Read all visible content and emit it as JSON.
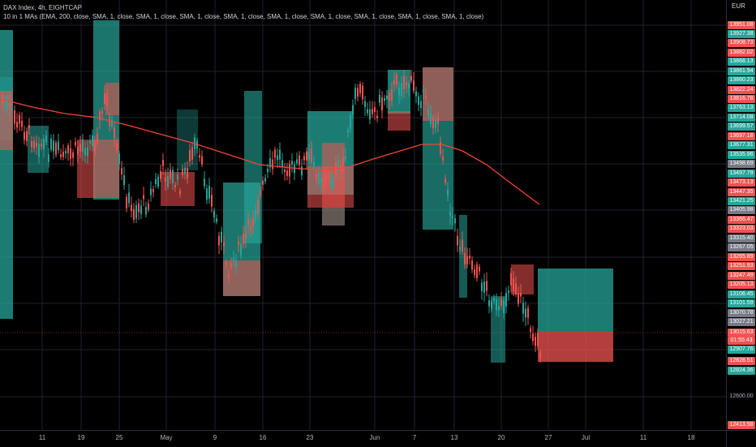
{
  "legend": {
    "symbol_line": "DAX Index, 4h, EIGHTCAP",
    "indicator_line": "10 in 1 MAs (EMA, 200, close, SMA, 1, close, SMA, 1, close, SMA, 1, close, SMA, 1, close, SMA, 1, close, SMA, 1, close, SMA, 1, close, SMA, 1, close, SMA, 1, close)"
  },
  "price_axis": {
    "currency": "EUR",
    "labels": [
      {
        "text": "13951.08",
        "color": "#ef5350"
      },
      {
        "text": "13927.38",
        "color": "#26a69a"
      },
      {
        "text": "13908.73",
        "color": "#ef5350"
      },
      {
        "text": "13882.02",
        "color": "#ef5350"
      },
      {
        "text": "13868.13",
        "color": "#26a69a"
      },
      {
        "text": "13861.94",
        "color": "#26a69a"
      },
      {
        "text": "13860.23",
        "color": "#26a69a"
      },
      {
        "text": "13822.24",
        "color": "#ef5350"
      },
      {
        "text": "13816.78",
        "color": "#ef5350"
      },
      {
        "text": "13763.13",
        "color": "#26a69a"
      },
      {
        "text": "13714.08",
        "color": "#26a69a"
      },
      {
        "text": "13699.57",
        "color": "#26a69a"
      },
      {
        "text": "13697.18",
        "color": "#ef5350"
      },
      {
        "text": "13677.31",
        "color": "#26a69a"
      },
      {
        "text": "13535.96",
        "color": "#26a69a"
      },
      {
        "text": "13498.69",
        "color": "#787b86"
      },
      {
        "text": "13497.79",
        "color": "#26a69a"
      },
      {
        "text": "13473.13",
        "color": "#ef5350"
      },
      {
        "text": "13447.35",
        "color": "#ef5350"
      },
      {
        "text": "13421.25",
        "color": "#26a69a"
      },
      {
        "text": "13405.98",
        "color": "#787b86"
      },
      {
        "text": "13366.47",
        "color": "#ef5350"
      },
      {
        "text": "13323.03",
        "color": "#ef5350"
      },
      {
        "text": "13315.40",
        "color": "#787b86"
      },
      {
        "text": "13267.05",
        "color": "#787b86"
      },
      {
        "text": "13265.89",
        "color": "#ef5350"
      },
      {
        "text": "13251.93",
        "color": "#ef5350"
      },
      {
        "text": "13247.49",
        "color": "#ef5350"
      },
      {
        "text": "13205.13",
        "color": "#ef5350"
      },
      {
        "text": "13106.45",
        "color": "#26a69a"
      },
      {
        "text": "13101.59",
        "color": "#26a69a"
      },
      {
        "text": "13070.78",
        "color": "#787b86"
      },
      {
        "text": "13027.21",
        "color": "#787b86"
      },
      {
        "text": "13015.63",
        "color": "#ef5350"
      },
      {
        "text": "01:55:43",
        "color": "#ef5350"
      },
      {
        "text": "12907.76",
        "color": "#26a69a"
      },
      {
        "text": "12828.51",
        "color": "#ef5350"
      },
      {
        "text": "12824.36",
        "color": "#26a69a"
      },
      {
        "text": "12600.00",
        "color": "plain"
      },
      {
        "text": "12413.58",
        "color": "#ef5350"
      }
    ]
  },
  "time_axis": {
    "labels": [
      "11",
      "19",
      "25",
      "May",
      "9",
      "16",
      "23",
      "Jun",
      "7",
      "13",
      "20",
      "27",
      "Jul",
      "11",
      "18"
    ]
  },
  "colors": {
    "up": "#26a69a",
    "down": "#ef5350",
    "ema": "#f44336",
    "zone_up": "#26a69a",
    "zone_down": "#ef5350",
    "grid": "#1e222d"
  }
}
